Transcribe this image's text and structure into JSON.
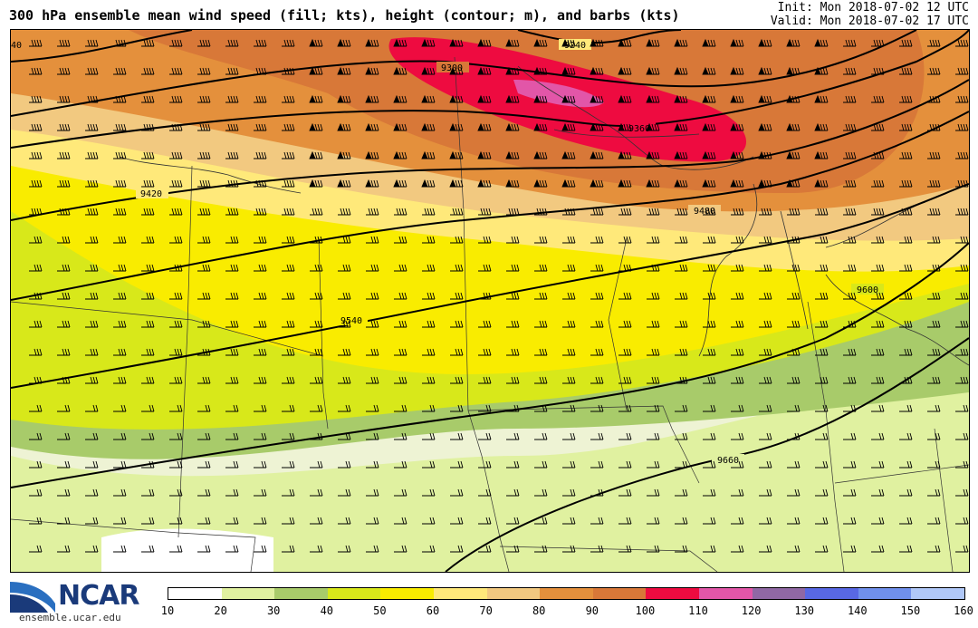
{
  "header": {
    "title": "300 hPa ensemble mean wind speed (fill; kts), height (contour; m), and barbs (kts)",
    "init": "Init: Mon 2018-07-02 12 UTC",
    "valid": "Valid: Mon 2018-07-02 17 UTC"
  },
  "logo": {
    "name": "NCAR",
    "url": "ensemble.ucar.edu"
  },
  "contours": {
    "labels": [
      "9240",
      "9300",
      "9360",
      "9420",
      "9480",
      "9540",
      "9600",
      "9660",
      "40"
    ]
  },
  "colorbar": {
    "ticks": [
      "10",
      "20",
      "30",
      "40",
      "50",
      "60",
      "70",
      "80",
      "90",
      "100",
      "110",
      "120",
      "130",
      "140",
      "150",
      "160"
    ],
    "colors": [
      "#ffffff",
      "#eef3d4",
      "#e0f1a0",
      "#a8cb6a",
      "#d8e81a",
      "#f9ec00",
      "#ffe97a",
      "#f2c980",
      "#e4903c",
      "#d87838",
      "#ee0b40",
      "#e256a8",
      "#9068a4",
      "#5868e4",
      "#7090ec",
      "#b0c8f8"
    ]
  },
  "colors": {
    "map_border": "#000000",
    "contour": "#000000",
    "ncar_blue": "#1a3a7a"
  }
}
